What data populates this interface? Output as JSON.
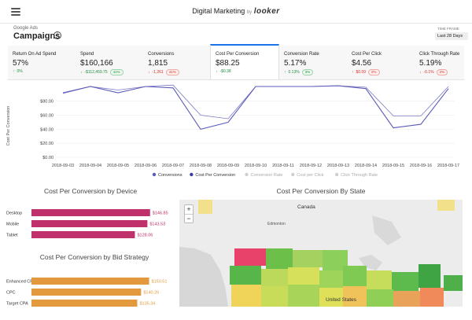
{
  "header": {
    "app_title": "Digital Marketing",
    "by": "by",
    "brand": "looker",
    "source_label": "Google Ads",
    "page_title": "Campaigns",
    "info_glyph": "i",
    "timeframe_label": "TIME FRAME",
    "timeframe_value": "Last 28 Days"
  },
  "kpis": [
    {
      "label": "Return On Ad Spend",
      "value": "57%",
      "arrow": "↑",
      "delta": "0%",
      "pct": "",
      "trend": "up",
      "active": false
    },
    {
      "label": "Spend",
      "value": "$160,166",
      "arrow": "↓",
      "delta": "-$112,459.75",
      "pct": "41%",
      "trend": "up",
      "active": false
    },
    {
      "label": "Conversions",
      "value": "1,815",
      "arrow": "↓",
      "delta": "-1,261",
      "pct": "41%",
      "trend": "down",
      "active": false
    },
    {
      "label": "Cost Per Conversion",
      "value": "$88.25",
      "arrow": "↓",
      "delta": "-$0.38",
      "pct": "",
      "trend": "up",
      "active": true
    },
    {
      "label": "Conversion Rate",
      "value": "5.17%",
      "arrow": "↑",
      "delta": "0.13%",
      "pct": "3%",
      "trend": "up",
      "active": false
    },
    {
      "label": "Cost Per Click",
      "value": "$4.56",
      "arrow": "↑",
      "delta": "$0.09",
      "pct": "2%",
      "trend": "down",
      "active": false
    },
    {
      "label": "Click Through Rate",
      "value": "5.19%",
      "arrow": "↓",
      "delta": "-0.1%",
      "pct": "2%",
      "trend": "down",
      "active": false
    }
  ],
  "chart_data": [
    {
      "type": "line",
      "ylabel": "Cost Per Conversion",
      "ylim": [
        0,
        110
      ],
      "yticks": [
        "$0.00",
        "$20.00",
        "$40.00",
        "$60.00",
        "$80.00"
      ],
      "x": [
        "2018-09-03",
        "2018-09-04",
        "2018-09-05",
        "2018-09-06",
        "2018-09-07",
        "2018-09-08",
        "2018-09-09",
        "2018-09-10",
        "2018-09-11",
        "2018-09-12",
        "2018-09-13",
        "2018-09-14",
        "2018-09-15",
        "2018-09-16",
        "2018-09-17"
      ],
      "series": [
        {
          "name": "Conversions",
          "color": "#7b7bc4",
          "values": [
            91,
            101,
            96,
            101,
            103,
            60,
            55,
            101,
            101,
            101,
            102,
            100,
            59,
            59,
            101
          ]
        },
        {
          "name": "Cost Per Conversion",
          "color": "#5c5cb8",
          "values": [
            92,
            101,
            92,
            101,
            99,
            40,
            50,
            101,
            101,
            101,
            102,
            98,
            42,
            47,
            98
          ]
        }
      ],
      "legend": [
        {
          "name": "Conversions",
          "color": "#5c5cb8"
        },
        {
          "name": "Cost Per Conversion",
          "color": "#3c3ca0"
        },
        {
          "name": "Conversion Rate",
          "color": "#cfcfcf"
        },
        {
          "name": "Cost per Click",
          "color": "#cfcfcf"
        },
        {
          "name": "Click Through Rate",
          "color": "#cfcfcf"
        }
      ],
      "legend_placement": "bottom"
    },
    {
      "type": "bar",
      "title": "Cost Per Conversion by Device",
      "categories": [
        "Desktop",
        "Mobile",
        "Tablet"
      ],
      "values": [
        146.85,
        143.53,
        128.06
      ],
      "labels": [
        "$146.85",
        "$143.53",
        "$128.06"
      ],
      "color": "#c0306a",
      "xlim": [
        0,
        150
      ]
    },
    {
      "type": "bar",
      "title": "Cost Per Conversion by Bid Strategy",
      "categories": [
        "Enhanced CPC",
        "CPC",
        "Target CPA"
      ],
      "values": [
        150.51,
        140.26,
        135.34
      ],
      "labels": [
        "$150.51",
        "$140.26",
        "$135.34"
      ],
      "color": "#e39a3e",
      "xlim": [
        0,
        155
      ]
    }
  ],
  "map": {
    "title": "Cost Per Conversion By State",
    "zoom_in": "+",
    "zoom_out": "−",
    "labels": {
      "canada": "Canada",
      "edmonton": "Edmonton",
      "us": "United States"
    }
  }
}
